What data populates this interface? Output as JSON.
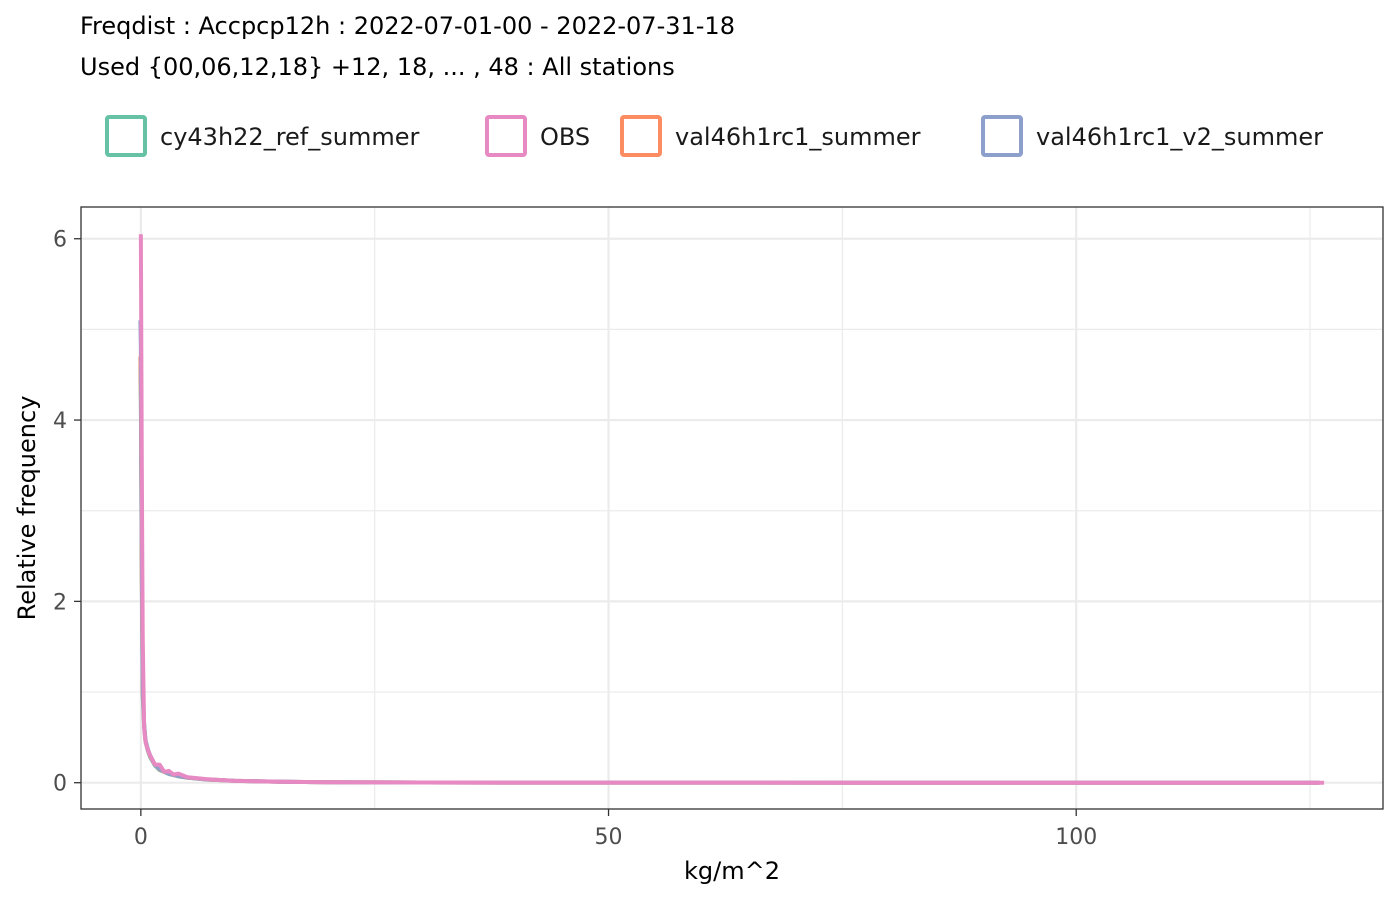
{
  "chart_data": {
    "type": "line",
    "title": "Freqdist : Accpcp12h : 2022-07-01-00 - 2022-07-31-18",
    "subtitle": "Used {00,06,12,18} +12, 18, ... , 48 : All stations",
    "xlabel": "kg/m^2",
    "ylabel": "Relative frequency",
    "xlim": [
      -6.4,
      132.8
    ],
    "ylim": [
      -0.29,
      6.35
    ],
    "xticks": [
      0,
      50,
      100
    ],
    "xtick_labels": [
      "0",
      "50",
      "100"
    ],
    "yticks": [
      0,
      2,
      4,
      6
    ],
    "ytick_labels": [
      "0",
      "2",
      "4",
      "6"
    ],
    "grid": true,
    "legend_position": "top",
    "series": [
      {
        "name": "cy43h22_ref_summer",
        "color": "#66c2a5",
        "x": [
          -0.1,
          -0.05,
          0.0,
          0.1,
          0.2,
          0.35,
          0.5,
          0.75,
          1.0,
          1.5,
          2.0,
          3.0,
          4.0,
          5.0,
          7.0,
          10.0,
          15.0,
          20.0,
          30.0,
          50.0,
          80.0,
          100.0,
          126.0
        ],
        "y": [
          4.6,
          4.6,
          4.2,
          2.2,
          0.95,
          0.62,
          0.45,
          0.35,
          0.28,
          0.19,
          0.14,
          0.095,
          0.07,
          0.055,
          0.035,
          0.02,
          0.01,
          0.005,
          0.002,
          0.001,
          0.0,
          0.0,
          0.0
        ]
      },
      {
        "name": "OBS",
        "color": "#e78ac3",
        "x": [
          0.0,
          0.1,
          0.2,
          0.35,
          0.5,
          0.75,
          1.0,
          1.5,
          2.0,
          2.5,
          3.0,
          3.5,
          4.0,
          5.0,
          7.0,
          10.0,
          15.0,
          20.0,
          30.0,
          50.0,
          80.0,
          100.0,
          126.5
        ],
        "y": [
          6.05,
          3.5,
          1.6,
          0.6,
          0.45,
          0.36,
          0.3,
          0.2,
          0.2,
          0.12,
          0.13,
          0.09,
          0.1,
          0.06,
          0.04,
          0.02,
          0.01,
          0.005,
          0.002,
          0.001,
          0.0,
          0.0,
          0.0
        ]
      },
      {
        "name": "val46h1rc1_summer",
        "color": "#fc8d62",
        "x": [
          -0.1,
          -0.05,
          0.0,
          0.1,
          0.2,
          0.35,
          0.5,
          0.75,
          1.0,
          1.5,
          2.0,
          3.0,
          4.0,
          5.0,
          7.0,
          10.0,
          15.0,
          20.0,
          30.0,
          50.0,
          80.0,
          100.0,
          126.0
        ],
        "y": [
          4.7,
          4.7,
          4.3,
          2.3,
          1.0,
          0.63,
          0.46,
          0.36,
          0.29,
          0.2,
          0.145,
          0.1,
          0.072,
          0.056,
          0.036,
          0.021,
          0.01,
          0.005,
          0.002,
          0.001,
          0.0,
          0.0,
          0.0
        ]
      },
      {
        "name": "val46h1rc1_v2_summer",
        "color": "#8da0cb",
        "x": [
          -0.1,
          -0.05,
          0.0,
          0.1,
          0.2,
          0.35,
          0.5,
          0.75,
          1.0,
          1.5,
          2.0,
          3.0,
          4.0,
          5.0,
          7.0,
          10.0,
          15.0,
          20.0,
          30.0,
          50.0,
          80.0,
          100.0,
          126.0
        ],
        "y": [
          5.1,
          5.1,
          4.8,
          2.5,
          1.05,
          0.64,
          0.47,
          0.37,
          0.3,
          0.2,
          0.15,
          0.1,
          0.074,
          0.057,
          0.037,
          0.021,
          0.011,
          0.005,
          0.002,
          0.001,
          0.0,
          0.0,
          0.0
        ]
      }
    ],
    "draw_order": [
      0,
      2,
      3,
      1
    ]
  }
}
